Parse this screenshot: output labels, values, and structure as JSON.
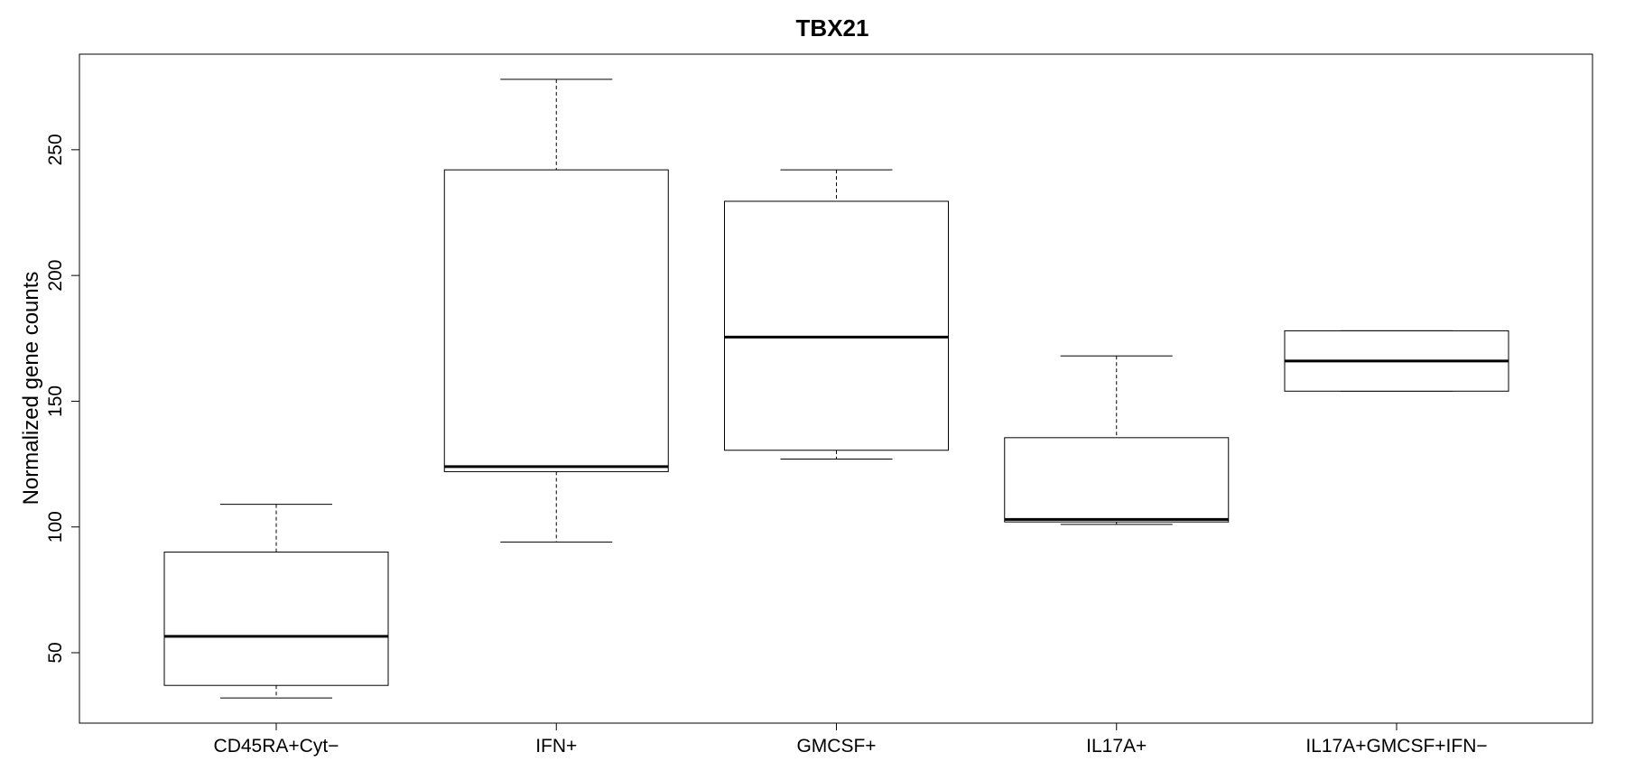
{
  "chart_data": {
    "type": "box",
    "title": "TBX21",
    "xlabel": "",
    "ylabel": "Normalized gene counts",
    "ylim": [
      22,
      288
    ],
    "yticks": [
      50,
      100,
      150,
      200,
      250
    ],
    "grid": false,
    "categories": [
      "CD45RA+Cyt−",
      "IFN+",
      "GMCSF+",
      "IL17A+",
      "IL17A+GMCSF+IFN−"
    ],
    "boxes": [
      {
        "min": 32,
        "q1": 37,
        "median": 56.5,
        "q3": 90,
        "max": 109
      },
      {
        "min": 94,
        "q1": 122,
        "median": 124,
        "q3": 242,
        "max": 278
      },
      {
        "min": 127,
        "q1": 130.5,
        "median": 175.5,
        "q3": 229.5,
        "max": 242
      },
      {
        "min": 101,
        "q1": 102,
        "median": 103,
        "q3": 135.5,
        "max": 168
      },
      {
        "min": 154,
        "q1": 154,
        "median": 166,
        "q3": 178,
        "max": 178
      }
    ]
  }
}
